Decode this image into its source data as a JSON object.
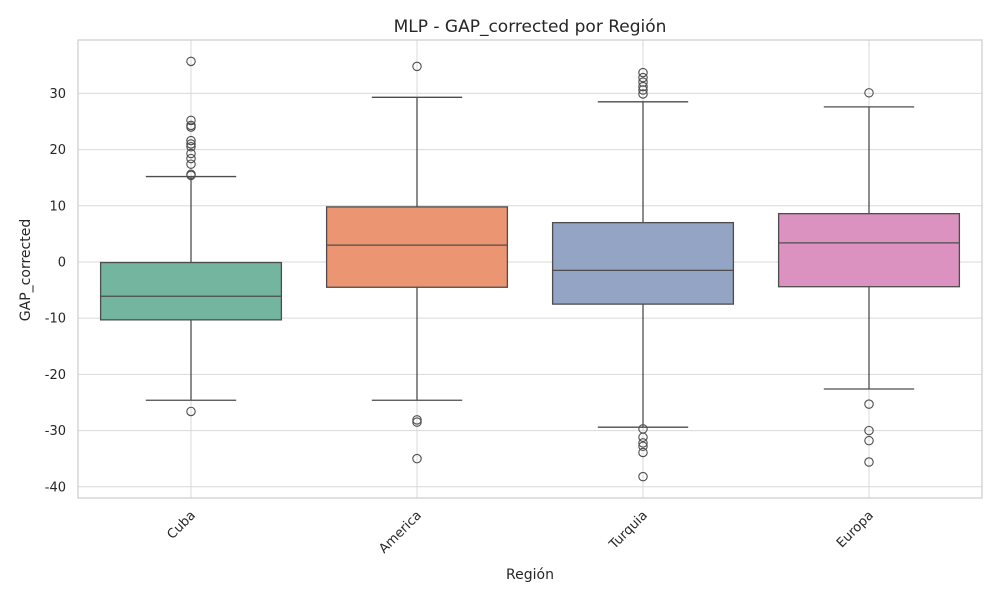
{
  "chart_data": {
    "type": "box",
    "title": "MLP - GAP_corrected por Región",
    "xlabel": "Región",
    "ylabel": "GAP_corrected",
    "ylim": [
      -42,
      39.5
    ],
    "yticks": [
      -40,
      -30,
      -20,
      -10,
      0,
      10,
      20,
      30
    ],
    "grid": true,
    "categories": [
      "Cuba",
      "America",
      "Turquia",
      "Europa"
    ],
    "colors": [
      "#73b59e",
      "#eb9573",
      "#93a4c5",
      "#dc92c0"
    ],
    "boxes": [
      {
        "category": "Cuba",
        "whisker_low": -24.6,
        "q1": -10.3,
        "median": -6.1,
        "q3": -0.1,
        "whisker_high": 15.2,
        "outliers": [
          35.7,
          25.2,
          24.3,
          24.0,
          21.6,
          21.0,
          20.5,
          19.3,
          18.4,
          17.4,
          15.6,
          15.4,
          -26.6
        ]
      },
      {
        "category": "America",
        "whisker_low": -24.6,
        "q1": -4.5,
        "median": 3.0,
        "q3": 9.8,
        "whisker_high": 29.3,
        "outliers": [
          34.8,
          -28.1,
          -28.5,
          -35.0
        ]
      },
      {
        "category": "Turquia",
        "whisker_low": -29.4,
        "q1": -7.5,
        "median": -1.5,
        "q3": 7.0,
        "whisker_high": 28.5,
        "outliers": [
          33.7,
          32.8,
          32.0,
          31.2,
          30.6,
          29.9,
          -29.7,
          -31.2,
          -32.2,
          -32.8,
          -33.9,
          -38.2
        ]
      },
      {
        "category": "Europa",
        "whisker_low": -22.6,
        "q1": -4.4,
        "median": 3.4,
        "q3": 8.6,
        "whisker_high": 27.6,
        "outliers": [
          30.1,
          -25.3,
          -30.0,
          -31.8,
          -35.6
        ]
      }
    ]
  }
}
